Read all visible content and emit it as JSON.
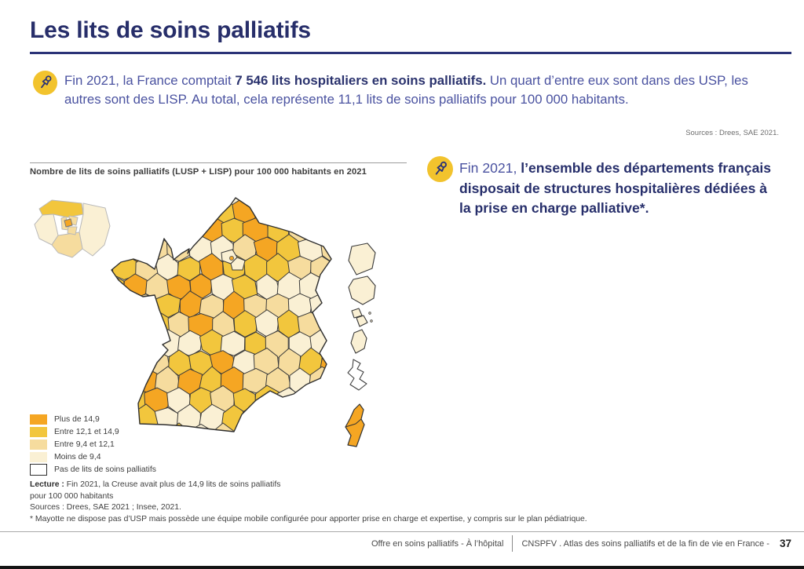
{
  "page": {
    "title": "Les lits de soins palliatifs"
  },
  "accents": {
    "title": "#272E6A",
    "rule": "#2B3377",
    "pin_bg": "#F2C32D",
    "pin_glyph": "#2B3377"
  },
  "intro": {
    "prefix": "Fin 2021, la France comptait ",
    "bold": "7 546 lits hospitaliers en soins palliatifs.",
    "suffix": " Un quart d’entre eux sont dans des USP, les autres sont des LISP. Au total, cela représente 11,1 lits de soins palliatifs pour 100 000 habitants.",
    "source": "Sources : Drees, SAE 2021."
  },
  "map": {
    "title": "Nombre de lits de soins palliatifs (LUSP + LISP) pour 100 000 habitants en 2021",
    "border_color": "#3B3B3B",
    "legend": [
      {
        "label": "Plus de 14,9",
        "color": "#F5A623"
      },
      {
        "label": "Entre 12,1 et 14,9",
        "color": "#F2C63D"
      },
      {
        "label": "Entre 9,4 et 12,1",
        "color": "#F6DC9E"
      },
      {
        "label": "Moins de 9,4",
        "color": "#FAF0D4"
      },
      {
        "label": "Pas de lits de soins palliatifs",
        "color": "#FFFFFF"
      }
    ],
    "lecture_label": "Lecture :",
    "lecture_line1": " Fin 2021, la Creuse avait plus de 14,9 lits de soins palliatifs",
    "lecture_line2": "pour 100 000 habitants",
    "sources": "Sources : Drees, SAE 2021 ;  Insee, 2021.",
    "footnote": "* Mayotte ne dispose pas d’USP mais possède une équipe mobile configurée pour apporter prise en charge et expertise, y compris sur le plan pédiatrique."
  },
  "highlight": {
    "prefix": "Fin 2021, ",
    "bold": "l’ensemble des départements français disposait de structures hospitalières dédiées à la prise en charge palliative*."
  },
  "footer": {
    "left": "Offre en soins palliatifs - À l’hôpital",
    "right": "CNSPFV . Atlas des soins palliatifs et de la fin de vie en France - ",
    "page_number": "37"
  },
  "chart_data": {
    "type": "heatmap",
    "subtype": "choropleth-map",
    "title": "Nombre de lits de soins palliatifs (LUSP + LISP) pour 100 000 habitants en 2021",
    "region": "France métropolitaine et outre-mer, par département",
    "classes": [
      "Plus de 14,9",
      "Entre 12,1 et 14,9",
      "Entre 9,4 et 12,1",
      "Moins de 9,4",
      "Pas de lits de soins palliatifs"
    ],
    "class_colors": [
      "#F5A623",
      "#F2C63D",
      "#F6DC9E",
      "#FAF0D4",
      "#FFFFFF"
    ],
    "noted_values": [
      {
        "region": "France entière",
        "value": "7 546 lits hospitaliers en soins palliatifs fin 2021"
      },
      {
        "region": "France entière",
        "value": "11,1 lits de soins palliatifs pour 100 000 habitants"
      },
      {
        "region": "Creuse",
        "value": "plus de 14,9 lits pour 100 000 habitants"
      }
    ],
    "legend_position": "bottom-left"
  }
}
